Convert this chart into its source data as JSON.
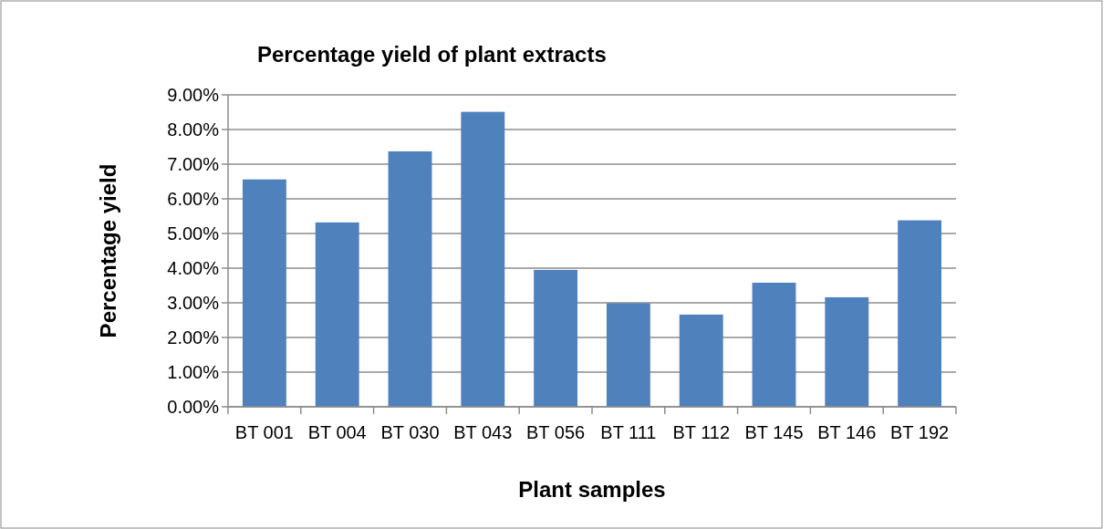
{
  "chart_data": {
    "type": "bar",
    "title": "Percentage yield of plant extracts",
    "xlabel": "Plant samples",
    "ylabel": "Percentage yield",
    "categories": [
      "BT 001",
      "BT 004",
      "BT 030",
      "BT 043",
      "BT 056",
      "BT 111",
      "BT 112",
      "BT 145",
      "BT 146",
      "BT 192"
    ],
    "values": [
      6.56,
      5.32,
      7.37,
      8.51,
      3.95,
      2.99,
      2.66,
      3.58,
      3.16,
      5.38
    ],
    "color": "#4f81bd",
    "ylim": [
      0,
      9
    ],
    "yticks": [
      {
        "value": 0,
        "label": "0.00%"
      },
      {
        "value": 1,
        "label": "1.00%"
      },
      {
        "value": 2,
        "label": "2.00%"
      },
      {
        "value": 3,
        "label": "3.00%"
      },
      {
        "value": 4,
        "label": "4.00%"
      },
      {
        "value": 5,
        "label": "5.00%"
      },
      {
        "value": 6,
        "label": "6.00%"
      },
      {
        "value": 7,
        "label": "7.00%"
      },
      {
        "value": 8,
        "label": "8.00%"
      },
      {
        "value": 9,
        "label": "9.00%"
      }
    ],
    "grid": "y"
  }
}
